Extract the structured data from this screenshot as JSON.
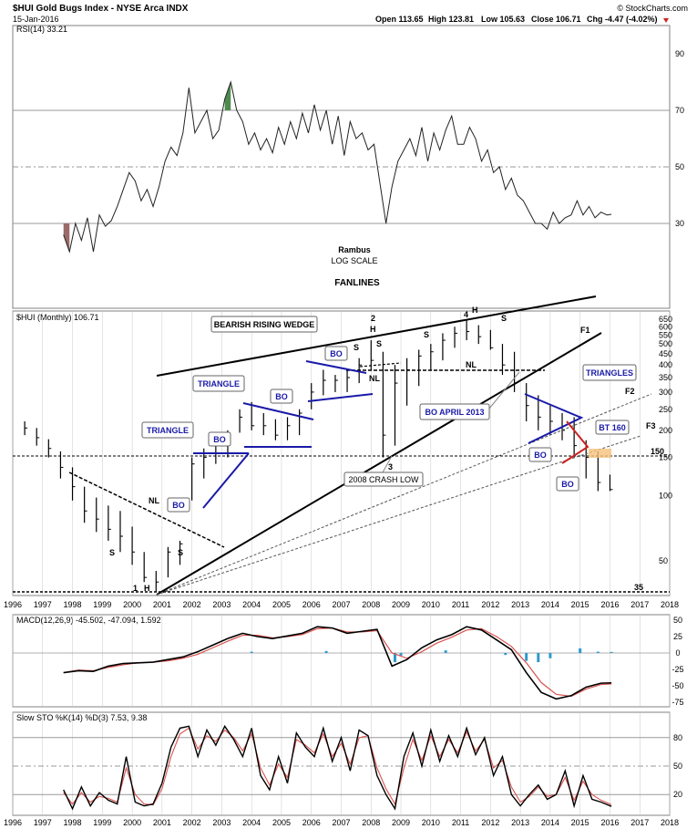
{
  "colors": {
    "frame": "#808080",
    "grid": "#c8c8c8",
    "price_bar": "#000000",
    "macd_line": "#000000",
    "signal_line": "#d9534f",
    "histogram": "#2e9ad0",
    "rsi_low_fill": "#9b6a6a",
    "rsi_high_fill": "#4f8a4f",
    "pattern_blue": "#1a1aa8",
    "pattern_red": "#cc2222",
    "bt_highlight": "#f5c27a"
  },
  "header": {
    "title": "$HUI Gold Bugs Index - NYSE Arca INDX",
    "date": "15-Jan-2016",
    "brand": "© StockCharts.com",
    "open": "Open 113.65",
    "high": "High 123.81",
    "low": "Low 105.63",
    "close": "Close 106.71",
    "chg": "Chg -4.47 (-4.02%)"
  },
  "annotations": {
    "rambus": "Rambus",
    "log_scale": "LOG SCALE",
    "fanlines": "FANLINES",
    "bearish_rising_wedge": "BEARISH RISING WEDGE",
    "triangle1": "TRIANGLE",
    "triangle2": "TRIANGLE",
    "triangles": "TRIANGLES",
    "bo_april_2013": "BO APRIL 2013",
    "crash_low": "2008 CRASH LOW",
    "bt160": "BT 160",
    "bo": "BO",
    "nl": "NL",
    "s": "S",
    "h": "H",
    "one": "1",
    "two": "2",
    "three": "3",
    "four": "4",
    "f1": "F1",
    "f2": "F2",
    "f3": "F3",
    "level150": "150",
    "level35": "35"
  },
  "chart_data": [
    {
      "type": "line",
      "panel": "rsi",
      "title": "RSI(14) 33.21",
      "yticks": [
        30,
        50,
        70,
        90
      ],
      "ylim": [
        0,
        100
      ],
      "reference_lines": [
        30,
        50,
        70
      ],
      "x": [
        1997.7,
        1997.9,
        1998.1,
        1998.3,
        1998.5,
        1998.7,
        1998.9,
        1999.1,
        1999.3,
        1999.5,
        1999.7,
        1999.9,
        2000.1,
        2000.3,
        2000.5,
        2000.7,
        2000.9,
        2001.1,
        2001.3,
        2001.5,
        2001.7,
        2001.9,
        2002.1,
        2002.3,
        2002.5,
        2002.7,
        2002.9,
        2003.1,
        2003.3,
        2003.5,
        2003.7,
        2003.9,
        2004.1,
        2004.3,
        2004.5,
        2004.7,
        2004.9,
        2005.1,
        2005.3,
        2005.5,
        2005.7,
        2005.9,
        2006.1,
        2006.3,
        2006.5,
        2006.7,
        2006.9,
        2007.1,
        2007.3,
        2007.5,
        2007.7,
        2007.9,
        2008.1,
        2008.3,
        2008.5,
        2008.7,
        2008.9,
        2009.1,
        2009.3,
        2009.5,
        2009.7,
        2009.9,
        2010.1,
        2010.3,
        2010.5,
        2010.7,
        2010.9,
        2011.1,
        2011.3,
        2011.5,
        2011.7,
        2011.9,
        2012.1,
        2012.3,
        2012.5,
        2012.7,
        2012.9,
        2013.1,
        2013.3,
        2013.5,
        2013.7,
        2013.9,
        2014.1,
        2014.3,
        2014.5,
        2014.7,
        2014.9,
        2015.1,
        2015.3,
        2015.5,
        2015.7,
        2015.9,
        2016.05
      ],
      "values": [
        26,
        20,
        30,
        24,
        32,
        20,
        33,
        29,
        31,
        36,
        42,
        48,
        45,
        38,
        42,
        36,
        43,
        52,
        57,
        54,
        62,
        78,
        62,
        66,
        70,
        60,
        63,
        74,
        80,
        70,
        66,
        58,
        62,
        56,
        60,
        55,
        64,
        58,
        66,
        60,
        69,
        62,
        72,
        63,
        70,
        58,
        68,
        54,
        66,
        60,
        62,
        56,
        58,
        44,
        30,
        43,
        52,
        56,
        60,
        54,
        64,
        52,
        62,
        56,
        63,
        68,
        58,
        58,
        64,
        60,
        52,
        56,
        48,
        50,
        42,
        46,
        40,
        38,
        34,
        30,
        30,
        28,
        34,
        30,
        32,
        33,
        38,
        33,
        36,
        32,
        34,
        33,
        33.21
      ]
    },
    {
      "type": "bar",
      "panel": "price",
      "title": "$HUI (Monthly) 106.71",
      "scale": "log",
      "ylim": [
        35,
        650
      ],
      "yticks": [
        50,
        100,
        150,
        200,
        250,
        300,
        350,
        400,
        450,
        500,
        550,
        600,
        650
      ],
      "x_axis": [
        1996,
        1997,
        1998,
        1999,
        2000,
        2001,
        2002,
        2003,
        2004,
        2005,
        2006,
        2007,
        2008,
        2009,
        2010,
        2011,
        2012,
        2013,
        2014,
        2015,
        2016,
        2017,
        2018
      ],
      "xlim": [
        1996,
        2018
      ],
      "x": [
        1996.4,
        1996.8,
        1997.2,
        1997.6,
        1998.0,
        1998.4,
        1998.8,
        1999.2,
        1999.6,
        2000.0,
        2000.4,
        2000.8,
        2001.2,
        2001.6,
        2002.0,
        2002.4,
        2002.8,
        2003.2,
        2003.6,
        2004.0,
        2004.4,
        2004.8,
        2005.2,
        2005.6,
        2006.0,
        2006.4,
        2006.8,
        2007.2,
        2007.6,
        2008.0,
        2008.4,
        2008.8,
        2009.2,
        2009.6,
        2010.0,
        2010.4,
        2010.8,
        2011.2,
        2011.6,
        2012.0,
        2012.4,
        2012.8,
        2013.2,
        2013.6,
        2014.0,
        2014.4,
        2014.8,
        2015.2,
        2015.6,
        2016.0
      ],
      "high": [
        220,
        205,
        182,
        160,
        135,
        110,
        98,
        90,
        85,
        72,
        55,
        45,
        58,
        62,
        150,
        165,
        185,
        200,
        250,
        270,
        240,
        225,
        230,
        250,
        330,
        380,
        360,
        380,
        430,
        520,
        460,
        400,
        430,
        470,
        500,
        560,
        600,
        640,
        610,
        580,
        500,
        460,
        330,
        290,
        260,
        240,
        230,
        180,
        160,
        125
      ],
      "low": [
        190,
        170,
        150,
        120,
        95,
        75,
        68,
        62,
        55,
        48,
        40,
        36,
        42,
        48,
        95,
        120,
        140,
        150,
        195,
        200,
        190,
        180,
        180,
        190,
        250,
        290,
        300,
        300,
        330,
        380,
        150,
        170,
        260,
        320,
        380,
        420,
        480,
        520,
        500,
        470,
        360,
        300,
        220,
        200,
        190,
        180,
        150,
        120,
        105,
        105
      ],
      "close": [
        205,
        185,
        165,
        135,
        110,
        85,
        78,
        70,
        65,
        55,
        42,
        40,
        55,
        60,
        140,
        150,
        170,
        190,
        230,
        210,
        210,
        190,
        210,
        240,
        300,
        340,
        340,
        350,
        400,
        420,
        190,
        330,
        380,
        440,
        460,
        520,
        560,
        570,
        540,
        480,
        400,
        330,
        260,
        230,
        220,
        200,
        170,
        150,
        115,
        106.71
      ],
      "reference_lines": [
        150,
        35
      ]
    },
    {
      "type": "line",
      "panel": "macd",
      "title": "MACD(12,26,9) -45.502, -47.094, 1.592",
      "ylim": [
        -75,
        50
      ],
      "yticks": [
        -75,
        -50,
        -25,
        0,
        25,
        50
      ],
      "series": [
        {
          "values_x": [
            1997.7,
            1998.2,
            1998.7,
            1999.2,
            1999.7,
            2000.2,
            2000.7,
            2001.2,
            2001.7,
            2002.2,
            2002.7,
            2003.2,
            2003.7,
            2004.2,
            2004.7,
            2005.2,
            2005.7,
            2006.2,
            2006.7,
            2007.2,
            2007.7,
            2008.2,
            2008.7,
            2009.2,
            2009.7,
            2010.2,
            2010.7,
            2011.2,
            2011.7,
            2012.2,
            2012.7,
            2013.2,
            2013.7,
            2014.2,
            2014.7,
            2015.2,
            2015.7,
            2016.05
          ],
          "values": [
            -30,
            -27,
            -28,
            -20,
            -16,
            -15,
            -14,
            -10,
            -6,
            2,
            12,
            22,
            30,
            25,
            22,
            26,
            30,
            40,
            38,
            30,
            33,
            36,
            -20,
            -10,
            8,
            20,
            28,
            40,
            35,
            20,
            5,
            -30,
            -60,
            -70,
            -65,
            -52,
            -46,
            -45.5
          ]
        },
        {
          "values_x": [
            1997.7,
            1998.2,
            1998.7,
            1999.2,
            1999.7,
            2000.2,
            2000.7,
            2001.2,
            2001.7,
            2002.2,
            2002.7,
            2003.2,
            2003.7,
            2004.2,
            2004.7,
            2005.2,
            2005.7,
            2006.2,
            2006.7,
            2007.2,
            2007.7,
            2008.2,
            2008.7,
            2009.2,
            2009.7,
            2010.2,
            2010.7,
            2011.2,
            2011.7,
            2012.2,
            2012.7,
            2013.2,
            2013.7,
            2014.2,
            2014.7,
            2015.2,
            2015.7,
            2016.05
          ],
          "values": [
            -30,
            -26,
            -27,
            -22,
            -18,
            -15,
            -14,
            -12,
            -8,
            -2,
            8,
            18,
            27,
            27,
            23,
            25,
            28,
            37,
            38,
            32,
            32,
            34,
            0,
            -8,
            2,
            15,
            24,
            35,
            37,
            25,
            10,
            -15,
            -45,
            -63,
            -66,
            -55,
            -48,
            -47.094
          ]
        }
      ],
      "histogram": {
        "x": [
          2004.0,
          2006.5,
          2008.8,
          2009.0,
          2010.5,
          2012.5,
          2013.2,
          2013.6,
          2014.0,
          2015.0,
          2015.6,
          2016.05
        ],
        "values": [
          2,
          3,
          -14,
          -4,
          4,
          -3,
          -12,
          -14,
          -8,
          7,
          2,
          1.592
        ]
      },
      "reference_lines": [
        0
      ]
    },
    {
      "type": "line",
      "panel": "sto",
      "title": "Slow STO %K(14) %D(3) 7.53, 9.38",
      "ylim": [
        0,
        100
      ],
      "yticks": [
        20,
        50,
        80
      ],
      "reference_lines": [
        20,
        50,
        80
      ],
      "series": [
        {
          "values_x": [
            1997.7,
            1998.0,
            1998.3,
            1998.6,
            1998.9,
            1999.2,
            1999.5,
            1999.8,
            2000.1,
            2000.4,
            2000.7,
            2001.0,
            2001.3,
            2001.6,
            2001.9,
            2002.2,
            2002.5,
            2002.8,
            2003.1,
            2003.4,
            2003.7,
            2004.0,
            2004.3,
            2004.6,
            2004.9,
            2005.2,
            2005.5,
            2005.8,
            2006.1,
            2006.4,
            2006.7,
            2007.0,
            2007.3,
            2007.6,
            2007.9,
            2008.2,
            2008.5,
            2008.8,
            2009.1,
            2009.4,
            2009.7,
            2010.0,
            2010.3,
            2010.6,
            2010.9,
            2011.2,
            2011.5,
            2011.8,
            2012.1,
            2012.4,
            2012.7,
            2013.0,
            2013.3,
            2013.6,
            2013.9,
            2014.2,
            2014.5,
            2014.8,
            2015.1,
            2015.4,
            2015.7,
            2016.05
          ],
          "values": [
            25,
            5,
            28,
            8,
            22,
            14,
            10,
            60,
            12,
            8,
            10,
            32,
            70,
            90,
            92,
            60,
            88,
            72,
            92,
            78,
            60,
            90,
            40,
            25,
            60,
            32,
            85,
            70,
            60,
            90,
            55,
            80,
            45,
            88,
            82,
            40,
            20,
            5,
            60,
            85,
            50,
            88,
            55,
            82,
            60,
            90,
            62,
            80,
            40,
            60,
            20,
            8,
            20,
            30,
            15,
            20,
            45,
            8,
            40,
            15,
            12,
            7.53
          ]
        },
        {
          "values_x": [
            1997.7,
            1998.0,
            1998.3,
            1998.6,
            1998.9,
            1999.2,
            1999.5,
            1999.8,
            2000.1,
            2000.4,
            2000.7,
            2001.0,
            2001.3,
            2001.6,
            2001.9,
            2002.2,
            2002.5,
            2002.8,
            2003.1,
            2003.4,
            2003.7,
            2004.0,
            2004.3,
            2004.6,
            2004.9,
            2005.2,
            2005.5,
            2005.8,
            2006.1,
            2006.4,
            2006.7,
            2007.0,
            2007.3,
            2007.6,
            2007.9,
            2008.2,
            2008.5,
            2008.8,
            2009.1,
            2009.4,
            2009.7,
            2010.0,
            2010.3,
            2010.6,
            2010.9,
            2011.2,
            2011.5,
            2011.8,
            2012.1,
            2012.4,
            2012.7,
            2013.0,
            2013.3,
            2013.6,
            2013.9,
            2014.2,
            2014.5,
            2014.8,
            2015.1,
            2015.4,
            2015.7,
            2016.05
          ],
          "values": [
            22,
            10,
            22,
            12,
            18,
            16,
            12,
            48,
            20,
            10,
            9,
            26,
            60,
            84,
            90,
            68,
            82,
            76,
            88,
            80,
            66,
            84,
            48,
            30,
            52,
            38,
            78,
            72,
            64,
            84,
            60,
            74,
            52,
            80,
            82,
            48,
            26,
            10,
            48,
            78,
            56,
            82,
            60,
            78,
            64,
            86,
            66,
            78,
            48,
            56,
            28,
            12,
            18,
            28,
            18,
            20,
            38,
            14,
            34,
            20,
            14,
            9.38
          ]
        }
      ]
    }
  ]
}
